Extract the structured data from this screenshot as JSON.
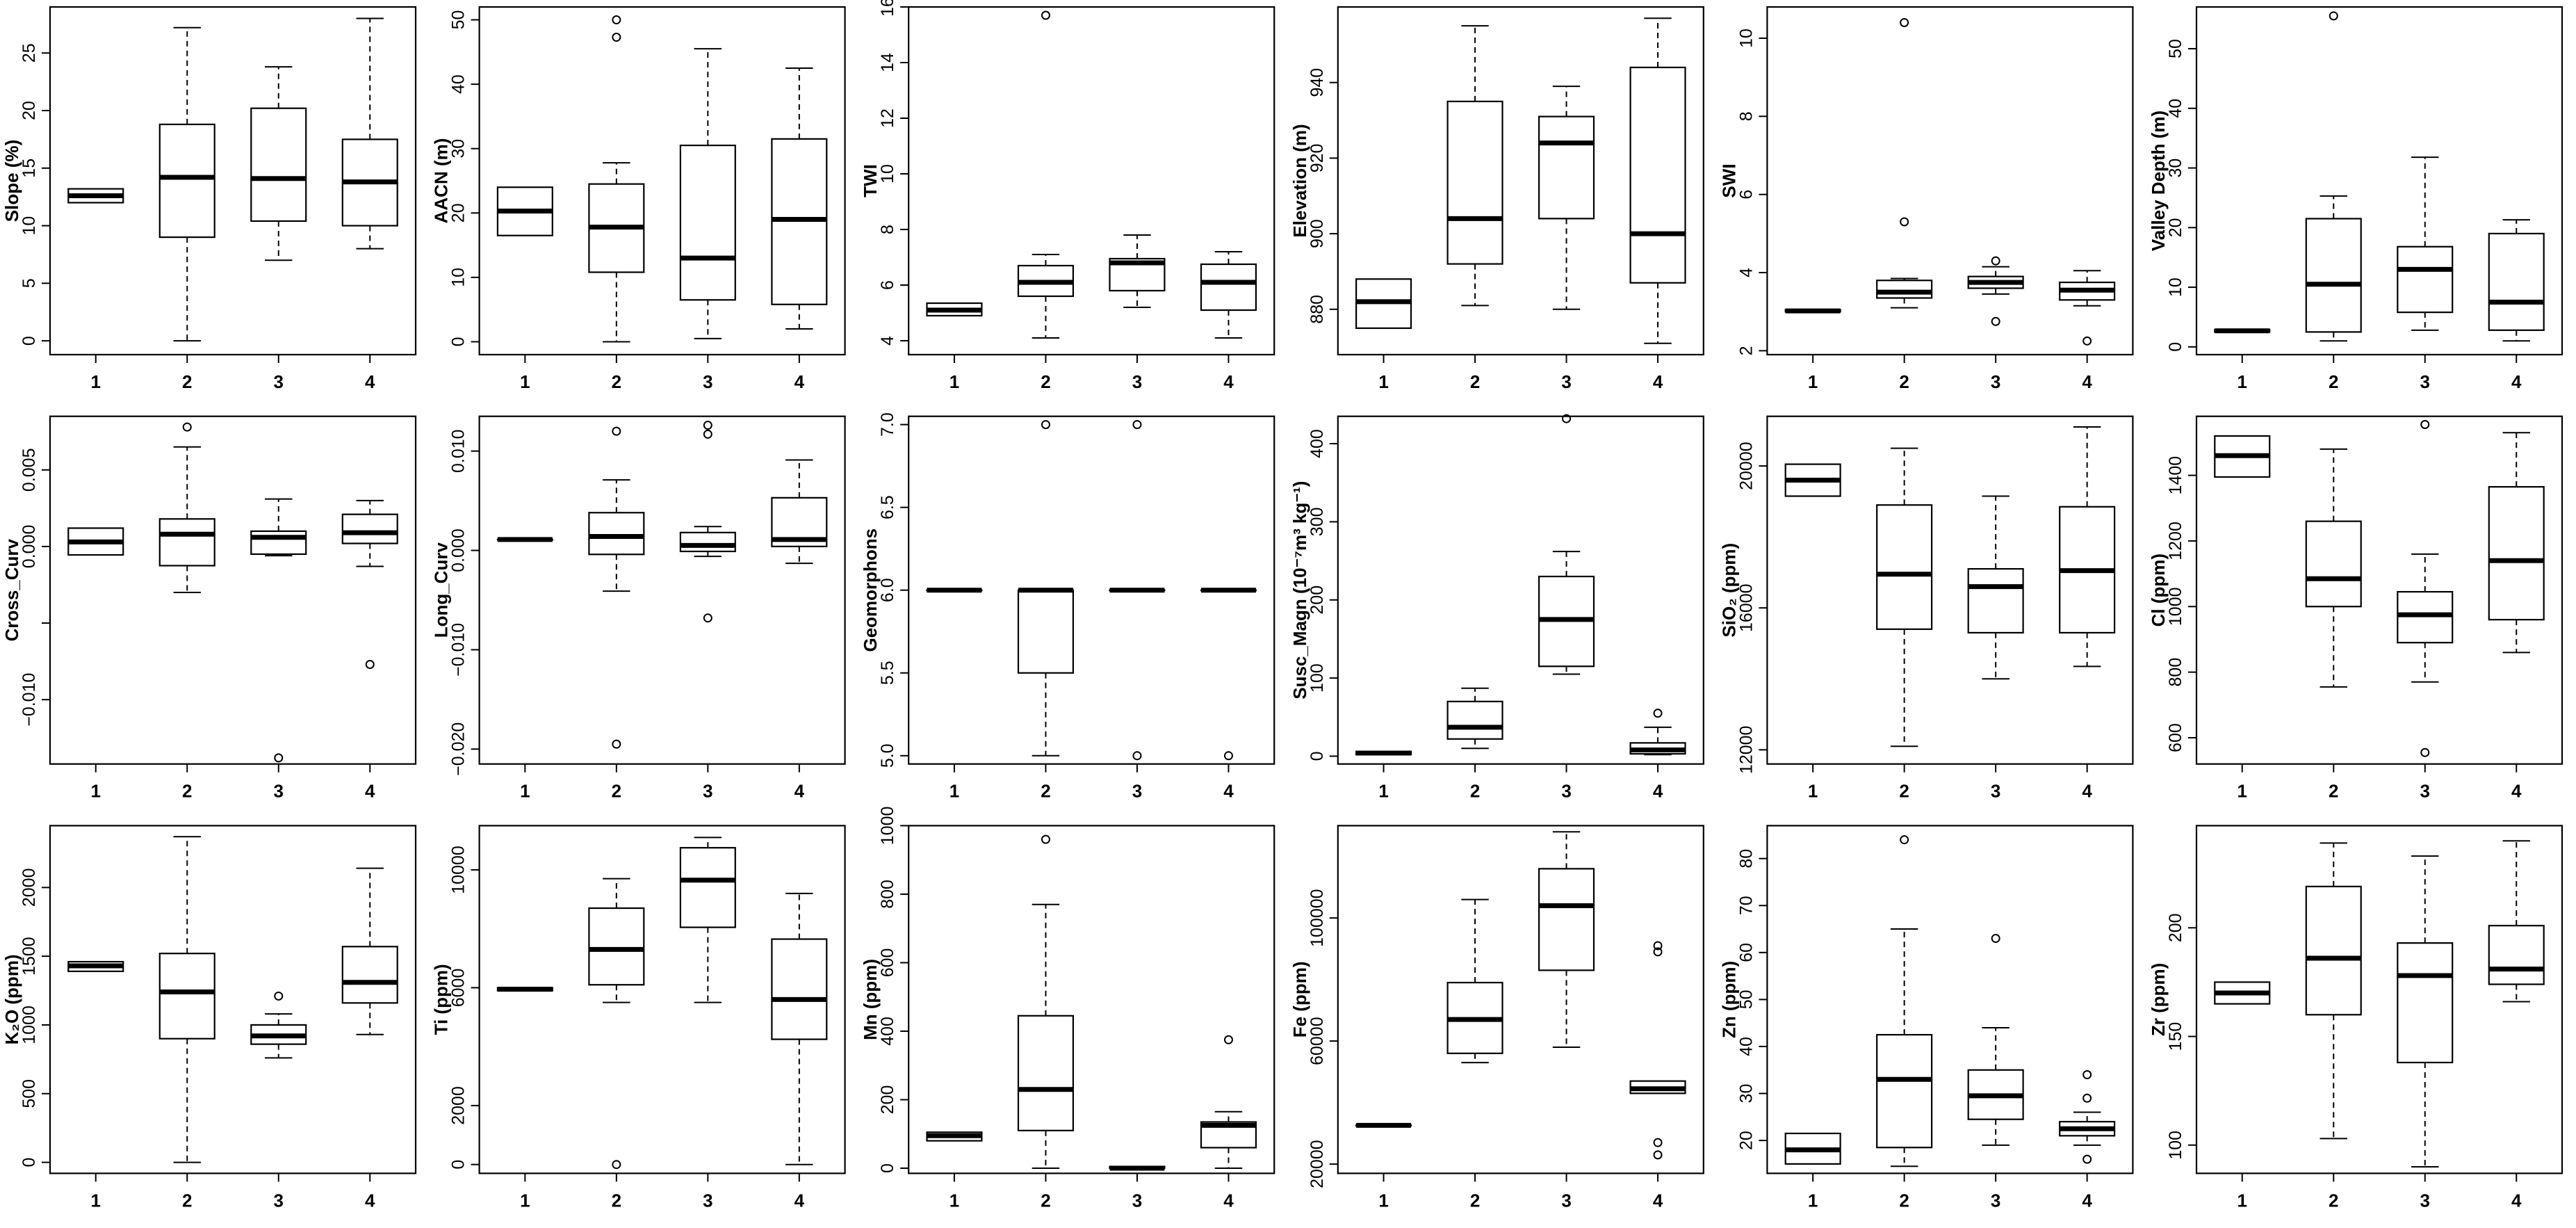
{
  "chart_data": [
    {
      "type": "box",
      "ylabel": "Slope (%)",
      "categories": [
        "1",
        "2",
        "3",
        "4"
      ],
      "yticks": [
        0,
        5,
        10,
        15,
        20,
        25
      ],
      "ylim": [
        -1.2,
        29
      ],
      "boxes": [
        {
          "min": 12.0,
          "q1": 12.0,
          "median": 12.6,
          "q3": 13.2,
          "max": 13.2,
          "outliers": []
        },
        {
          "min": 0,
          "q1": 9.0,
          "median": 14.2,
          "q3": 18.8,
          "max": 27.2,
          "outliers": []
        },
        {
          "min": 7.0,
          "q1": 10.4,
          "median": 14.1,
          "q3": 20.2,
          "max": 23.8,
          "outliers": []
        },
        {
          "min": 8.0,
          "q1": 10.0,
          "median": 13.8,
          "q3": 17.5,
          "max": 28.0,
          "outliers": []
        }
      ]
    },
    {
      "type": "box",
      "ylabel": "AACN (m)",
      "categories": [
        "1",
        "2",
        "3",
        "4"
      ],
      "yticks": [
        0,
        10,
        20,
        30,
        40,
        50
      ],
      "ylim": [
        -2,
        52
      ],
      "boxes": [
        {
          "min": 16.5,
          "q1": 16.5,
          "median": 20.3,
          "q3": 24.0,
          "max": 24.0,
          "outliers": []
        },
        {
          "min": 0,
          "q1": 10.8,
          "median": 17.8,
          "q3": 24.5,
          "max": 27.8,
          "outliers": [
            47.3,
            50.0
          ]
        },
        {
          "min": 0.5,
          "q1": 6.5,
          "median": 13.0,
          "q3": 30.5,
          "max": 45.5,
          "outliers": []
        },
        {
          "min": 2.0,
          "q1": 5.8,
          "median": 19.0,
          "q3": 31.5,
          "max": 42.5,
          "outliers": []
        }
      ]
    },
    {
      "type": "box",
      "ylabel": "TWI",
      "categories": [
        "1",
        "2",
        "3",
        "4"
      ],
      "yticks": [
        4,
        6,
        8,
        10,
        12,
        14,
        16
      ],
      "ylim": [
        3.5,
        16
      ],
      "boxes": [
        {
          "min": 4.9,
          "q1": 4.9,
          "median": 5.1,
          "q3": 5.35,
          "max": 5.35,
          "outliers": []
        },
        {
          "min": 4.1,
          "q1": 5.6,
          "median": 6.1,
          "q3": 6.7,
          "max": 7.1,
          "outliers": [
            15.7
          ]
        },
        {
          "min": 5.2,
          "q1": 5.8,
          "median": 6.8,
          "q3": 6.95,
          "max": 7.8,
          "outliers": []
        },
        {
          "min": 4.1,
          "q1": 5.1,
          "median": 6.1,
          "q3": 6.75,
          "max": 7.2,
          "outliers": []
        }
      ]
    },
    {
      "type": "box",
      "ylabel": "Elevation (m)",
      "categories": [
        "1",
        "2",
        "3",
        "4"
      ],
      "yticks": [
        880,
        900,
        920,
        940
      ],
      "ylim": [
        868,
        960
      ],
      "boxes": [
        {
          "min": 875,
          "q1": 875,
          "median": 882,
          "q3": 888,
          "max": 888,
          "outliers": []
        },
        {
          "min": 881,
          "q1": 892,
          "median": 904,
          "q3": 935,
          "max": 955,
          "outliers": []
        },
        {
          "min": 880,
          "q1": 904,
          "median": 924,
          "q3": 931,
          "max": 939,
          "outliers": []
        },
        {
          "min": 871,
          "q1": 887,
          "median": 900,
          "q3": 944,
          "max": 957,
          "outliers": []
        }
      ]
    },
    {
      "type": "box",
      "ylabel": "SWI",
      "categories": [
        "1",
        "2",
        "3",
        "4"
      ],
      "yticks": [
        2,
        4,
        6,
        8,
        10
      ],
      "ylim": [
        1.9,
        10.8
      ],
      "boxes": [
        {
          "min": 3.0,
          "q1": 3.0,
          "median": 3.02,
          "q3": 3.05,
          "max": 3.05,
          "outliers": []
        },
        {
          "min": 3.1,
          "q1": 3.35,
          "median": 3.5,
          "q3": 3.8,
          "max": 3.85,
          "outliers": [
            10.4,
            5.3
          ]
        },
        {
          "min": 3.45,
          "q1": 3.6,
          "median": 3.75,
          "q3": 3.9,
          "max": 4.15,
          "outliers": [
            4.3,
            2.75
          ]
        },
        {
          "min": 3.15,
          "q1": 3.3,
          "median": 3.55,
          "q3": 3.75,
          "max": 4.05,
          "outliers": [
            2.25
          ]
        }
      ]
    },
    {
      "type": "box",
      "ylabel": "Valley Depth (m)",
      "categories": [
        "1",
        "2",
        "3",
        "4"
      ],
      "yticks": [
        0,
        10,
        20,
        30,
        40,
        50
      ],
      "ylim": [
        -1.3,
        57
      ],
      "boxes": [
        {
          "min": 2.5,
          "q1": 2.5,
          "median": 2.7,
          "q3": 2.9,
          "max": 2.9,
          "outliers": []
        },
        {
          "min": 1.0,
          "q1": 2.5,
          "median": 10.5,
          "q3": 21.5,
          "max": 25.3,
          "outliers": [
            55.5
          ]
        },
        {
          "min": 2.8,
          "q1": 5.8,
          "median": 13.0,
          "q3": 16.8,
          "max": 31.8,
          "outliers": []
        },
        {
          "min": 1.0,
          "q1": 2.8,
          "median": 7.5,
          "q3": 19.0,
          "max": 21.3,
          "outliers": []
        }
      ]
    },
    {
      "type": "box",
      "ylabel": "Cross_Curv",
      "categories": [
        "1",
        "2",
        "3",
        "4"
      ],
      "yticks": [
        -0.01,
        -0.005,
        0.0,
        0.005
      ],
      "ytickLabels": [
        "−0.010",
        "",
        "0.000",
        "0.005"
      ],
      "ylim": [
        -0.0142,
        0.0085
      ],
      "boxes": [
        {
          "min": -0.00055,
          "q1": -0.00055,
          "median": 0.0003,
          "q3": 0.0012,
          "max": 0.0012,
          "outliers": []
        },
        {
          "min": -0.003,
          "q1": -0.00125,
          "median": 0.0008,
          "q3": 0.0018,
          "max": 0.0065,
          "outliers": [
            0.0078
          ]
        },
        {
          "min": -0.0006,
          "q1": -0.0005,
          "median": 0.0006,
          "q3": 0.001,
          "max": 0.0031,
          "outliers": [
            -0.0138
          ]
        },
        {
          "min": -0.0013,
          "q1": 0.0002,
          "median": 0.0009,
          "q3": 0.0021,
          "max": 0.003,
          "outliers": [
            -0.0077
          ]
        }
      ]
    },
    {
      "type": "box",
      "ylabel": "Long_Curv",
      "categories": [
        "1",
        "2",
        "3",
        "4"
      ],
      "yticks": [
        -0.02,
        -0.01,
        0.0,
        0.01
      ],
      "ytickLabels": [
        "−0.020",
        "−0.010",
        "0.000",
        "0.010"
      ],
      "ylim": [
        -0.0215,
        0.0135
      ],
      "boxes": [
        {
          "min": 0.0011,
          "q1": 0.0011,
          "median": 0.0011,
          "q3": 0.0011,
          "max": 0.0011,
          "outliers": []
        },
        {
          "min": -0.0041,
          "q1": -0.0004,
          "median": 0.0014,
          "q3": 0.0038,
          "max": 0.0071,
          "outliers": [
            0.012,
            -0.0195
          ]
        },
        {
          "min": -0.0006,
          "q1": -0.0001,
          "median": 0.0005,
          "q3": 0.0018,
          "max": 0.0024,
          "outliers": [
            0.0117,
            0.0126,
            -0.0068
          ]
        },
        {
          "min": -0.0013,
          "q1": 0.0004,
          "median": 0.0011,
          "q3": 0.0053,
          "max": 0.0091,
          "outliers": []
        }
      ]
    },
    {
      "type": "box",
      "ylabel": "Geomorphons",
      "categories": [
        "1",
        "2",
        "3",
        "4"
      ],
      "yticks": [
        5.0,
        5.5,
        6.0,
        6.5,
        7.0
      ],
      "ytickLabels": [
        "5.0",
        "5.5",
        "6.0",
        "6.5",
        "7.0"
      ],
      "ylim": [
        4.95,
        7.05
      ],
      "boxes": [
        {
          "min": 6.0,
          "q1": 6.0,
          "median": 6.0,
          "q3": 6.0,
          "max": 6.0,
          "outliers": []
        },
        {
          "min": 5.0,
          "q1": 5.5,
          "median": 6.0,
          "q3": 6.0,
          "max": 6.0,
          "outliers": [
            7.0
          ]
        },
        {
          "min": 6.0,
          "q1": 6.0,
          "median": 6.0,
          "q3": 6.0,
          "max": 6.0,
          "outliers": [
            7.0,
            5.0
          ]
        },
        {
          "min": 6.0,
          "q1": 6.0,
          "median": 6.0,
          "q3": 6.0,
          "max": 6.0,
          "outliers": [
            5.0
          ]
        }
      ]
    },
    {
      "type": "box",
      "ylabel": "Susc_Magn (10⁻⁷m³ kg⁻¹)",
      "categories": [
        "1",
        "2",
        "3",
        "4"
      ],
      "yticks": [
        0,
        100,
        200,
        300,
        400
      ],
      "ylim": [
        -10,
        435
      ],
      "boxes": [
        {
          "min": 2,
          "q1": 2,
          "median": 4,
          "q3": 6,
          "max": 6,
          "outliers": []
        },
        {
          "min": 10,
          "q1": 22,
          "median": 37,
          "q3": 70,
          "max": 87,
          "outliers": []
        },
        {
          "min": 105,
          "q1": 115,
          "median": 175,
          "q3": 230,
          "max": 262,
          "outliers": [
            432
          ]
        },
        {
          "min": 2,
          "q1": 3,
          "median": 8,
          "q3": 17,
          "max": 37,
          "outliers": [
            55
          ]
        }
      ]
    },
    {
      "type": "box",
      "ylabel": "SiO₂ (ppm)",
      "categories": [
        "1",
        "2",
        "3",
        "4"
      ],
      "yticks": [
        12000,
        16000,
        20000
      ],
      "ylim": [
        11600,
        21400
      ],
      "boxes": [
        {
          "min": 19150,
          "q1": 19150,
          "median": 19600,
          "q3": 20050,
          "max": 20050,
          "outliers": []
        },
        {
          "min": 12100,
          "q1": 15400,
          "median": 16950,
          "q3": 18900,
          "max": 20500,
          "outliers": []
        },
        {
          "min": 14000,
          "q1": 15300,
          "median": 16600,
          "q3": 17100,
          "max": 19150,
          "outliers": []
        },
        {
          "min": 14350,
          "q1": 15300,
          "median": 17050,
          "q3": 18850,
          "max": 21100,
          "outliers": []
        }
      ]
    },
    {
      "type": "box",
      "ylabel": "Cl (ppm)",
      "categories": [
        "1",
        "2",
        "3",
        "4"
      ],
      "yticks": [
        600,
        800,
        1000,
        1200,
        1400
      ],
      "ylim": [
        520,
        1580
      ],
      "boxes": [
        {
          "min": 1395,
          "q1": 1395,
          "median": 1460,
          "q3": 1520,
          "max": 1520,
          "outliers": []
        },
        {
          "min": 755,
          "q1": 1000,
          "median": 1085,
          "q3": 1260,
          "max": 1480,
          "outliers": []
        },
        {
          "min": 770,
          "q1": 890,
          "median": 975,
          "q3": 1045,
          "max": 1160,
          "outliers": [
            1555,
            555
          ]
        },
        {
          "min": 860,
          "q1": 960,
          "median": 1140,
          "q3": 1365,
          "max": 1530,
          "outliers": []
        }
      ]
    },
    {
      "type": "box",
      "ylabel": "K₂O (ppm)",
      "categories": [
        "1",
        "2",
        "3",
        "4"
      ],
      "yticks": [
        0,
        500,
        1000,
        1500,
        2000
      ],
      "ylim": [
        -80,
        2450
      ],
      "boxes": [
        {
          "min": 1390,
          "q1": 1390,
          "median": 1430,
          "q3": 1460,
          "max": 1460,
          "outliers": []
        },
        {
          "min": 0,
          "q1": 900,
          "median": 1240,
          "q3": 1520,
          "max": 2370,
          "outliers": []
        },
        {
          "min": 760,
          "q1": 860,
          "median": 920,
          "q3": 1000,
          "max": 1080,
          "outliers": [
            1210
          ]
        },
        {
          "min": 930,
          "q1": 1160,
          "median": 1310,
          "q3": 1570,
          "max": 2140,
          "outliers": []
        }
      ]
    },
    {
      "type": "box",
      "ylabel": "Ti (ppm)",
      "categories": [
        "1",
        "2",
        "3",
        "4"
      ],
      "yticks": [
        0,
        2000,
        6000,
        10000
      ],
      "ylim": [
        -300,
        11500
      ],
      "boxes": [
        {
          "min": 5900,
          "q1": 5900,
          "median": 5950,
          "q3": 6000,
          "max": 6000,
          "outliers": []
        },
        {
          "min": 5500,
          "q1": 6100,
          "median": 7300,
          "q3": 8700,
          "max": 9700,
          "outliers": [
            0
          ]
        },
        {
          "min": 5500,
          "q1": 8050,
          "median": 9650,
          "q3": 10750,
          "max": 11100,
          "outliers": []
        },
        {
          "min": 0,
          "q1": 4250,
          "median": 5600,
          "q3": 7650,
          "max": 9200,
          "outliers": []
        }
      ]
    },
    {
      "type": "box",
      "ylabel": "Mn (ppm)",
      "categories": [
        "1",
        "2",
        "3",
        "4"
      ],
      "yticks": [
        0,
        200,
        400,
        600,
        800,
        1000
      ],
      "ylim": [
        -15,
        1000
      ],
      "boxes": [
        {
          "min": 80,
          "q1": 80,
          "median": 95,
          "q3": 105,
          "max": 105,
          "outliers": []
        },
        {
          "min": 0,
          "q1": 110,
          "median": 230,
          "q3": 445,
          "max": 770,
          "outliers": [
            960
          ]
        },
        {
          "min": 0,
          "q1": 0,
          "median": 0,
          "q3": 5,
          "max": 5,
          "outliers": []
        },
        {
          "min": 0,
          "q1": 60,
          "median": 125,
          "q3": 135,
          "max": 165,
          "outliers": [
            375
          ]
        }
      ]
    },
    {
      "type": "box",
      "ylabel": "Fe (ppm)",
      "categories": [
        "1",
        "2",
        "3",
        "4"
      ],
      "yticks": [
        20000,
        60000,
        100000
      ],
      "ylim": [
        17000,
        130000
      ],
      "boxes": [
        {
          "min": 32500,
          "q1": 32500,
          "median": 32600,
          "q3": 32700,
          "max": 32700,
          "outliers": []
        },
        {
          "min": 53000,
          "q1": 56000,
          "median": 67000,
          "q3": 79000,
          "max": 106000,
          "outliers": []
        },
        {
          "min": 58000,
          "q1": 83000,
          "median": 104000,
          "q3": 116000,
          "max": 128000,
          "outliers": []
        },
        {
          "min": 43000,
          "q1": 43000,
          "median": 44500,
          "q3": 47000,
          "max": 47000,
          "outliers": [
            91000,
            89000,
            27000,
            23000
          ]
        }
      ]
    },
    {
      "type": "box",
      "ylabel": "Zn (ppm)",
      "categories": [
        "1",
        "2",
        "3",
        "4"
      ],
      "yticks": [
        20,
        30,
        40,
        50,
        60,
        70,
        80
      ],
      "ylim": [
        13,
        87
      ],
      "boxes": [
        {
          "min": 15,
          "q1": 15,
          "median": 18,
          "q3": 21.5,
          "max": 21.5,
          "outliers": []
        },
        {
          "min": 14.5,
          "q1": 18.5,
          "median": 33,
          "q3": 42.5,
          "max": 65,
          "outliers": [
            84
          ]
        },
        {
          "min": 19,
          "q1": 24.5,
          "median": 29.5,
          "q3": 35,
          "max": 44,
          "outliers": [
            63
          ]
        },
        {
          "min": 19,
          "q1": 21,
          "median": 22.5,
          "q3": 24,
          "max": 26,
          "outliers": [
            34,
            29,
            16
          ]
        }
      ]
    },
    {
      "type": "box",
      "ylabel": "Zr (ppm)",
      "categories": [
        "1",
        "2",
        "3",
        "4"
      ],
      "yticks": [
        100,
        150,
        200
      ],
      "ylim": [
        87,
        247
      ],
      "boxes": [
        {
          "min": 165,
          "q1": 165,
          "median": 170,
          "q3": 175,
          "max": 175,
          "outliers": []
        },
        {
          "min": 103,
          "q1": 160,
          "median": 186,
          "q3": 219,
          "max": 239,
          "outliers": []
        },
        {
          "min": 90,
          "q1": 138,
          "median": 178,
          "q3": 193,
          "max": 233,
          "outliers": []
        },
        {
          "min": 166,
          "q1": 174,
          "median": 181,
          "q3": 201,
          "max": 240,
          "outliers": []
        }
      ]
    }
  ]
}
